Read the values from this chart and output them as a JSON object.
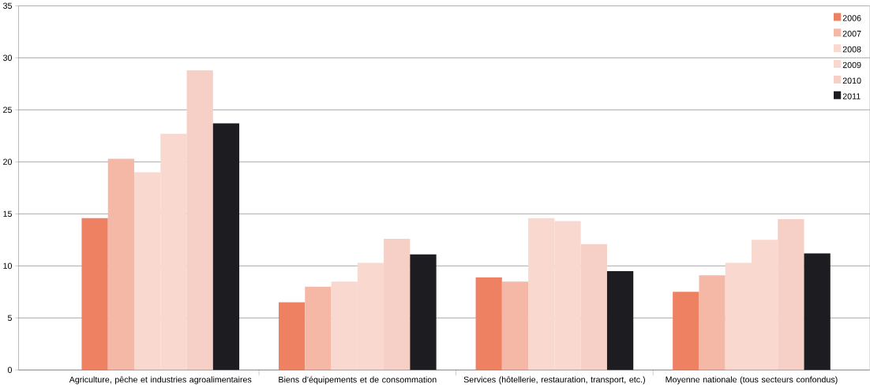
{
  "chart_data": {
    "type": "bar",
    "categories": [
      "Agriculture, pêche et industries agroalimentaires",
      "Biens d’équipements et de consommation",
      "Services (hôtellerie, restauration, transport, etc.)",
      "Moyenne nationale (tous secteurs confondus)"
    ],
    "series": [
      {
        "name": "2006",
        "color": "#ef8163",
        "values": [
          14.6,
          6.5,
          8.9,
          7.5
        ]
      },
      {
        "name": "2007",
        "color": "#f5b8a7",
        "values": [
          20.3,
          8.0,
          8.5,
          9.1
        ]
      },
      {
        "name": "2008",
        "color": "#f9d9cf",
        "values": [
          19.0,
          8.5,
          14.6,
          10.3
        ]
      },
      {
        "name": "2009",
        "color": "#f9d9cf",
        "values": [
          22.7,
          10.3,
          14.3,
          12.5
        ]
      },
      {
        "name": "2010",
        "color": "#f6d0c6",
        "values": [
          28.8,
          12.6,
          12.1,
          14.5
        ]
      },
      {
        "name": "2011",
        "color": "#1d1c20",
        "values": [
          23.7,
          11.1,
          9.5,
          11.2
        ]
      }
    ],
    "ylim": [
      0,
      35
    ],
    "yticks": [
      0,
      5,
      10,
      15,
      20,
      25,
      30,
      35
    ],
    "grid": "y",
    "legend": "top right"
  }
}
